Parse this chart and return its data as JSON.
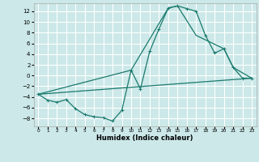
{
  "xlabel": "Humidex (Indice chaleur)",
  "bg_color": "#cce8e8",
  "grid_color": "#ffffff",
  "line_color": "#1a7a6e",
  "line1_x": [
    0,
    1,
    2,
    3,
    4,
    5,
    6,
    7,
    8,
    9,
    10,
    11,
    12,
    13,
    14,
    15,
    16,
    17,
    18,
    19,
    20,
    21,
    22,
    23
  ],
  "line1_y": [
    -3.5,
    -4.6,
    -5.0,
    -4.5,
    -6.2,
    -7.3,
    -7.7,
    -7.9,
    -8.5,
    -6.5,
    1.0,
    -2.5,
    4.5,
    8.7,
    12.6,
    13.0,
    12.5,
    12.0,
    7.5,
    4.2,
    5.0,
    1.5,
    -0.5,
    -0.5
  ],
  "line2_x": [
    0,
    10,
    14,
    15,
    17,
    20,
    21,
    23
  ],
  "line2_y": [
    -3.5,
    1.0,
    12.6,
    13.0,
    7.5,
    5.0,
    1.5,
    -0.5
  ],
  "line3_x": [
    0,
    23
  ],
  "line3_y": [
    -3.5,
    -0.5
  ],
  "yticks": [
    -8,
    -6,
    -4,
    -2,
    0,
    2,
    4,
    6,
    8,
    10,
    12
  ],
  "xticks": [
    0,
    1,
    2,
    3,
    4,
    5,
    6,
    7,
    8,
    9,
    10,
    11,
    12,
    13,
    14,
    15,
    16,
    17,
    18,
    19,
    20,
    21,
    22,
    23
  ],
  "xlim": [
    -0.5,
    23.5
  ],
  "ylim": [
    -9.5,
    13.5
  ],
  "marker": "+"
}
